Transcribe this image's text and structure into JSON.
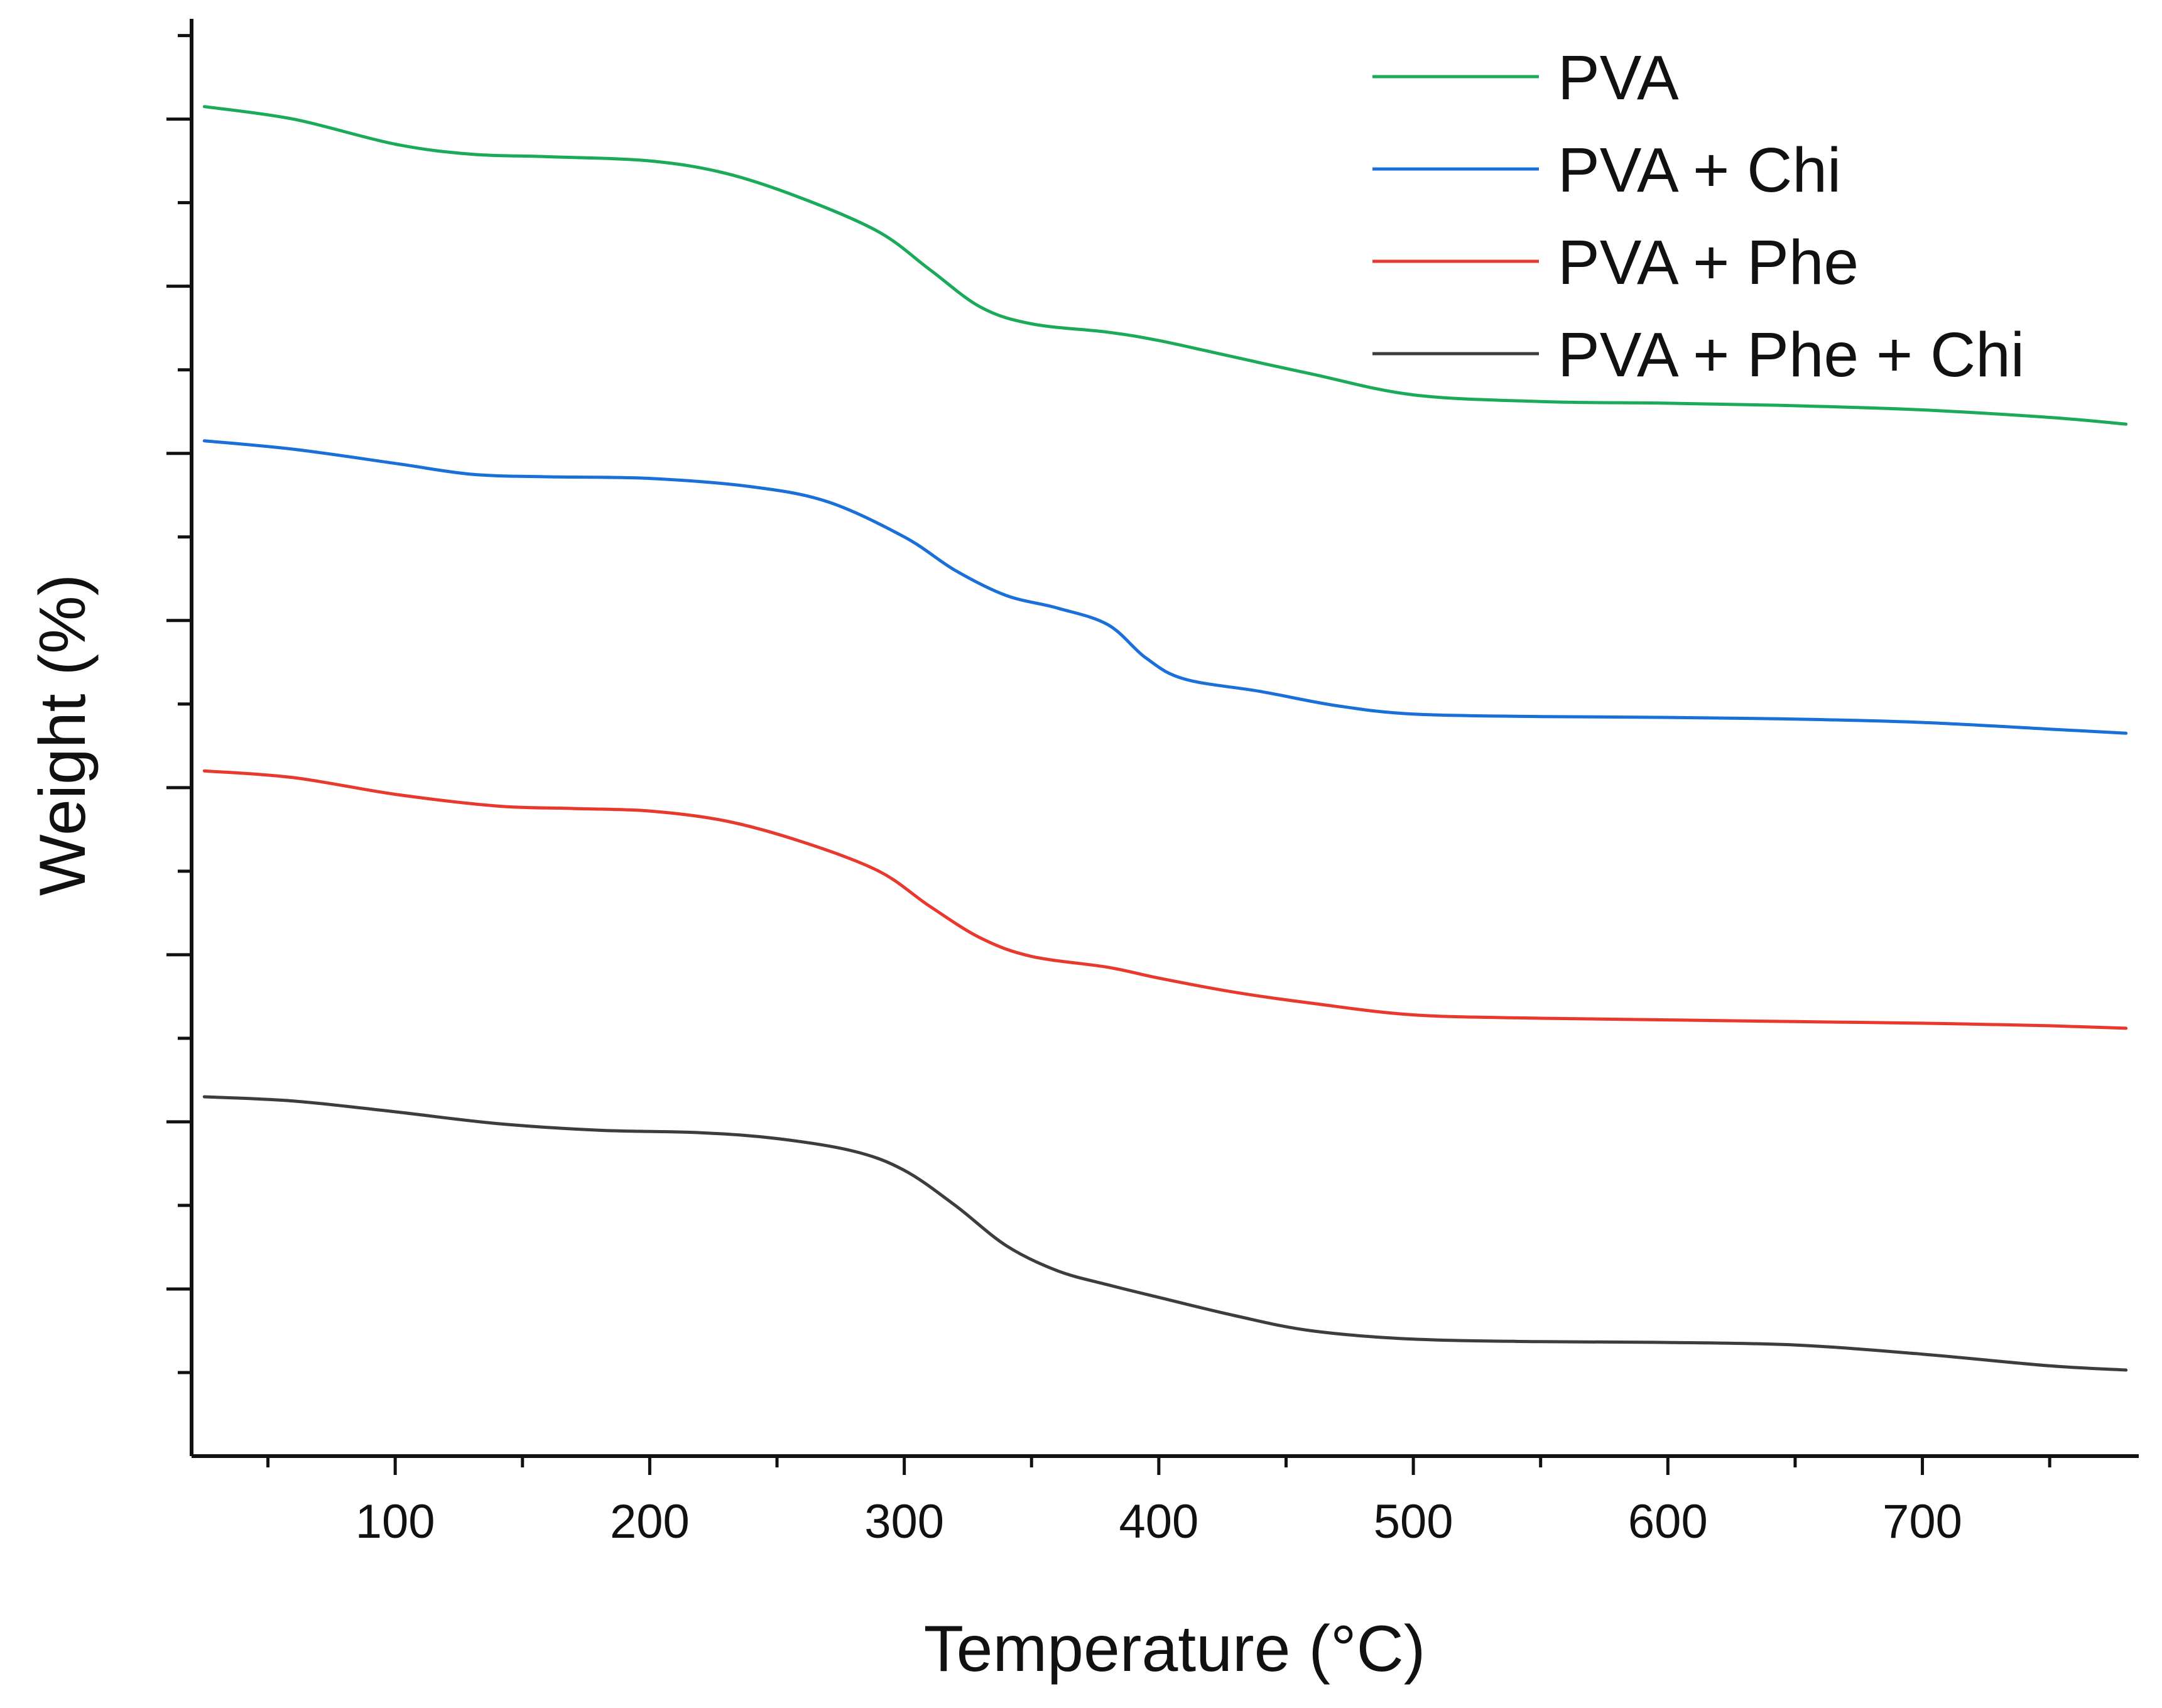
{
  "chart_data": {
    "type": "line",
    "title": "",
    "xlabel": "Temperature (°C)",
    "ylabel": "Weight (%)",
    "xlim": [
      20,
      785
    ],
    "ylim": [
      0,
      17.2
    ],
    "x_ticks": [
      100,
      200,
      300,
      400,
      500,
      600,
      700
    ],
    "x_tick_labels": [
      "100",
      "200",
      "300",
      "400",
      "500",
      "600",
      "700"
    ],
    "y_tick_labels_shown": false,
    "grid": false,
    "legend_position": "top-right",
    "series": [
      {
        "name": "PVA",
        "color": "#1aaa5a",
        "x": [
          25,
          60,
          100,
          130,
          160,
          200,
          230,
          260,
          290,
          310,
          330,
          350,
          380,
          400,
          430,
          460,
          500,
          550,
          600,
          650,
          700,
          750,
          780
        ],
        "y": [
          16.15,
          16.0,
          15.7,
          15.58,
          15.55,
          15.5,
          15.35,
          15.05,
          14.65,
          14.2,
          13.75,
          13.55,
          13.45,
          13.35,
          13.15,
          12.95,
          12.7,
          12.62,
          12.6,
          12.57,
          12.52,
          12.43,
          12.35
        ]
      },
      {
        "name": "PVA + Chi",
        "color": "#1a6fd9",
        "x": [
          25,
          60,
          100,
          130,
          160,
          200,
          240,
          270,
          300,
          320,
          340,
          360,
          380,
          395,
          410,
          440,
          470,
          500,
          550,
          600,
          650,
          700,
          750,
          780
        ],
        "y": [
          12.15,
          12.05,
          11.88,
          11.75,
          11.72,
          11.7,
          11.6,
          11.42,
          11.0,
          10.6,
          10.3,
          10.15,
          9.95,
          9.55,
          9.3,
          9.15,
          8.98,
          8.88,
          8.85,
          8.84,
          8.82,
          8.78,
          8.7,
          8.65
        ]
      },
      {
        "name": "PVA + Phe",
        "color": "#e8392e",
        "x": [
          25,
          60,
          100,
          140,
          170,
          200,
          230,
          260,
          290,
          310,
          330,
          350,
          380,
          400,
          430,
          460,
          500,
          550,
          600,
          650,
          700,
          750,
          780
        ],
        "y": [
          8.2,
          8.12,
          7.92,
          7.78,
          7.75,
          7.72,
          7.6,
          7.35,
          7.0,
          6.58,
          6.2,
          5.98,
          5.85,
          5.72,
          5.55,
          5.42,
          5.28,
          5.24,
          5.22,
          5.2,
          5.18,
          5.15,
          5.12
        ]
      },
      {
        "name": "PVA + Phe + Chi",
        "color": "#3d3d3d",
        "x": [
          25,
          60,
          100,
          140,
          180,
          220,
          250,
          280,
          300,
          320,
          340,
          360,
          380,
          400,
          430,
          460,
          500,
          550,
          600,
          650,
          700,
          750,
          780
        ],
        "y": [
          4.3,
          4.25,
          4.12,
          3.98,
          3.9,
          3.87,
          3.8,
          3.65,
          3.42,
          3.0,
          2.52,
          2.22,
          2.05,
          1.9,
          1.68,
          1.5,
          1.4,
          1.37,
          1.36,
          1.33,
          1.22,
          1.08,
          1.03
        ]
      }
    ]
  }
}
